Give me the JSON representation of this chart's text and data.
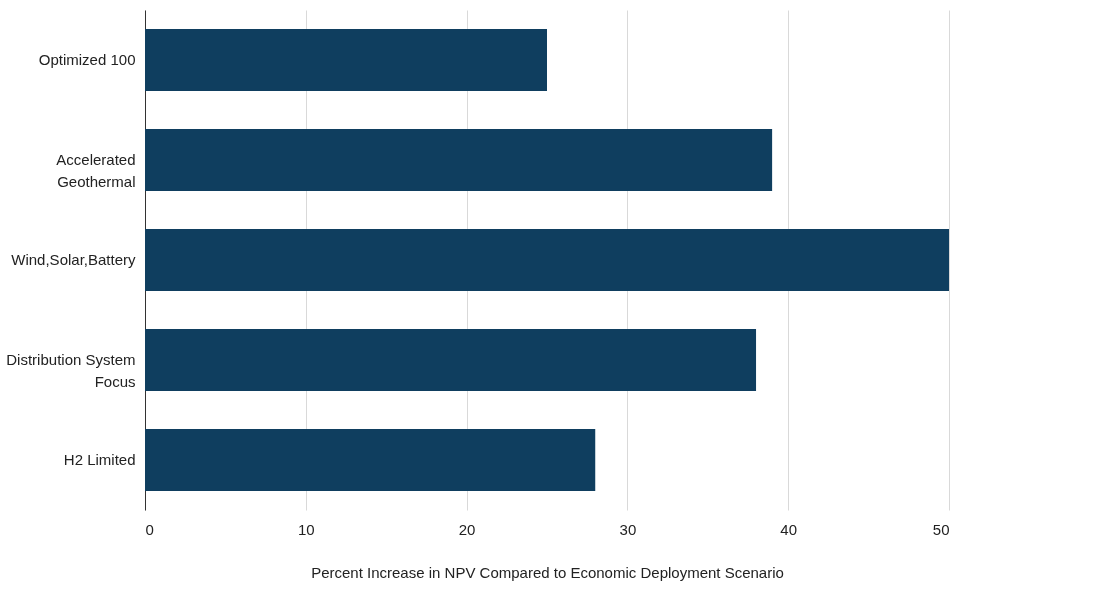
{
  "chart_data": {
    "type": "bar",
    "orientation": "horizontal",
    "xlabel": "Percent Increase in NPV Compared to Economic Deployment Scenario",
    "categories": [
      "Optimized 100",
      "Accelerated Geothermal",
      "Wind,Solar,Battery",
      "Distribution System Focus",
      "H2 Limited"
    ],
    "values": [
      25,
      39,
      50,
      38,
      28
    ],
    "color": "#0f3e5f",
    "xlim": [
      0,
      50
    ],
    "xticks": [
      0,
      10,
      20,
      30,
      40,
      50
    ],
    "grid": "x"
  }
}
